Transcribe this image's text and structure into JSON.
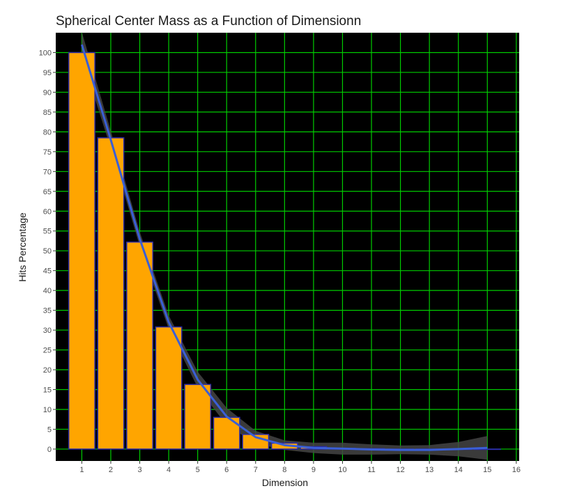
{
  "chart_data": {
    "type": "bar",
    "title": "Spherical Center Mass as a Function of Dimensionn",
    "xlabel": "Dimension",
    "ylabel": "Hits Percentage",
    "x_ticks": [
      "1",
      "2",
      "3",
      "4",
      "5",
      "6",
      "7",
      "8",
      "9",
      "10",
      "11",
      "12",
      "13",
      "14",
      "15",
      "16"
    ],
    "y_ticks": [
      "0",
      "5",
      "10",
      "15",
      "20",
      "25",
      "30",
      "35",
      "40",
      "45",
      "50",
      "55",
      "60",
      "65",
      "70",
      "75",
      "80",
      "85",
      "90",
      "95",
      "100"
    ],
    "xlim": [
      0.1,
      16.1
    ],
    "ylim": [
      -3,
      105
    ],
    "categories": [
      1,
      2,
      3,
      4,
      5,
      6,
      7,
      8,
      9,
      10,
      11,
      12,
      13,
      14,
      15
    ],
    "values": [
      100,
      78.5,
      52.2,
      30.8,
      16.3,
      8.0,
      3.7,
      1.5,
      0.6,
      0.2,
      0.1,
      0.0,
      0.0,
      0.0,
      0.0
    ],
    "smooth": {
      "x": [
        1,
        2,
        3,
        4,
        5,
        6,
        7,
        8,
        9,
        10,
        11,
        12,
        13,
        14,
        15
      ],
      "y": [
        102,
        78,
        53,
        32,
        17.5,
        8.2,
        3.0,
        1.0,
        0.3,
        0.1,
        -0.1,
        -0.2,
        -0.2,
        0.0,
        0.3
      ],
      "se": [
        3.2,
        2.2,
        1.8,
        1.7,
        2.0,
        2.2,
        1.6,
        1.2,
        1.3,
        1.5,
        1.3,
        1.1,
        1.2,
        1.8,
        3.0
      ]
    },
    "grid": true,
    "colors": {
      "panel": "#000000",
      "grid": "#00cc00",
      "bar_fill": "#ffa500",
      "bar_stroke": "#2a2aa8",
      "line": "#3a5fd6",
      "ribbon": "#444444"
    }
  }
}
